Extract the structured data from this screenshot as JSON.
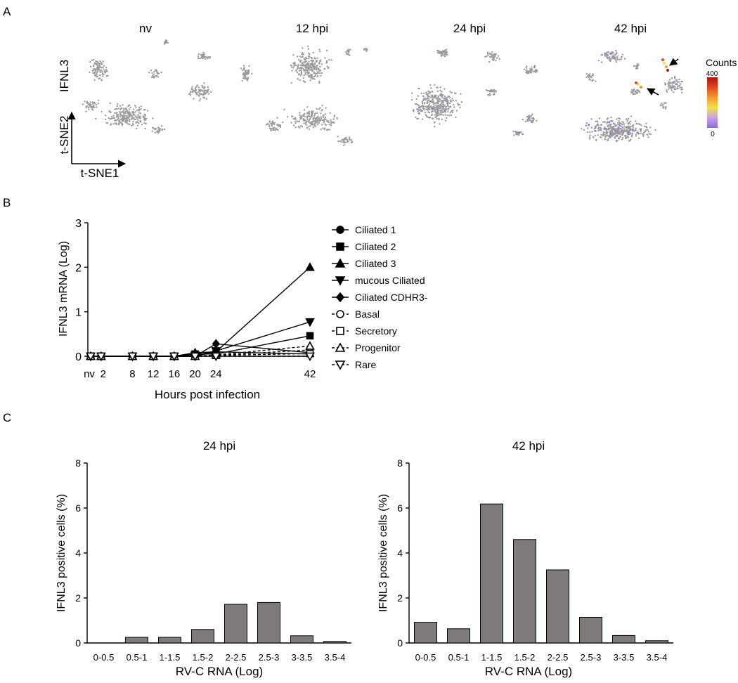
{
  "panel_labels": [
    "A",
    "B",
    "C"
  ],
  "panel_a": {
    "timepoints": [
      "nv",
      "12 hpi",
      "24 hpi",
      "42 hpi"
    ],
    "x_axis_label": "t-SNE1",
    "y_axis_label": "t-SNE2",
    "gene_label": "IFNL3",
    "colorbar": {
      "title": "Counts",
      "max_label": "400",
      "min_label": "0",
      "colors": [
        "#8a6bd8",
        "#c9a0e8",
        "#f0e24a",
        "#f29a2e",
        "#e24a1e",
        "#b1120f"
      ]
    },
    "arrows": 2
  },
  "chart_data": [
    {
      "type": "line",
      "title": "",
      "xlabel": "Hours post infection",
      "ylabel": "IFNL3 mRNA (Log)",
      "x": [
        0,
        2,
        8,
        12,
        16,
        20,
        24,
        42
      ],
      "x_tick_labels": [
        "nv",
        "2",
        "8",
        "12",
        "16",
        "20",
        "24",
        "42"
      ],
      "ylim": [
        0,
        3
      ],
      "y_ticks": [
        "0",
        "1",
        "2",
        "3"
      ],
      "series": [
        {
          "name": "Ciliated 1",
          "marker": "circle-filled",
          "dashed": false,
          "values": [
            0,
            0,
            0,
            0,
            0,
            0,
            0.1,
            0.05
          ]
        },
        {
          "name": "Ciliated 2",
          "marker": "square-filled",
          "dashed": false,
          "values": [
            0,
            0,
            0,
            0,
            0,
            0.05,
            0.05,
            0.46
          ]
        },
        {
          "name": "Ciliated 3",
          "marker": "triangle-up-filled",
          "dashed": false,
          "values": [
            0,
            0,
            0,
            0,
            0,
            0.08,
            0.1,
            2.0
          ]
        },
        {
          "name": "mucous Ciliated",
          "marker": "triangle-down-filled",
          "dashed": false,
          "values": [
            0,
            0,
            0,
            0,
            0,
            0.02,
            0.12,
            0.77
          ]
        },
        {
          "name": "Ciliated CDHR3-",
          "marker": "diamond-filled",
          "dashed": false,
          "values": [
            0,
            0,
            0,
            0,
            0,
            0.0,
            0.28,
            0.08
          ]
        },
        {
          "name": "Basal",
          "marker": "circle-open",
          "dashed": true,
          "values": [
            0,
            0,
            0,
            0,
            0,
            0,
            0.02,
            0.14
          ]
        },
        {
          "name": "Secretory",
          "marker": "square-open",
          "dashed": true,
          "values": [
            0,
            0,
            0,
            0,
            0,
            0,
            0.02,
            0.06
          ]
        },
        {
          "name": "Progenitor",
          "marker": "triangle-up-open",
          "dashed": true,
          "values": [
            0,
            0,
            0,
            0,
            0,
            0,
            0.03,
            0.23
          ]
        },
        {
          "name": "Rare",
          "marker": "triangle-down-open",
          "dashed": true,
          "values": [
            0,
            0,
            0,
            0,
            0,
            0,
            0,
            0.0
          ]
        }
      ]
    },
    {
      "type": "bar",
      "title": "24 hpi",
      "xlabel": "RV-C RNA (Log)",
      "ylabel": "IFNL3 positive cells (%)",
      "categories": [
        "0-0.5",
        "0.5-1",
        "1-1.5",
        "1.5-2",
        "2-2.5",
        "2.5-3",
        "3-3.5",
        "3.5-4"
      ],
      "values": [
        0,
        0.25,
        0.25,
        0.6,
        1.72,
        1.8,
        0.32,
        0.07
      ],
      "ylim": [
        0,
        8
      ],
      "y_ticks": [
        "0",
        "2",
        "4",
        "6",
        "8"
      ],
      "bar_color": "#7f7b7b"
    },
    {
      "type": "bar",
      "title": "42 hpi",
      "xlabel": "RV-C RNA (Log)",
      "ylabel": "IFNL3 positive cells (%)",
      "categories": [
        "0-0.5",
        "0.5-1",
        "1-1.5",
        "1.5-2",
        "2-2.5",
        "2.5-3",
        "3-3.5",
        "3.5-4"
      ],
      "values": [
        0.92,
        0.63,
        6.18,
        4.6,
        3.25,
        1.14,
        0.33,
        0.1
      ],
      "ylim": [
        0,
        8
      ],
      "y_ticks": [
        "0",
        "2",
        "4",
        "6",
        "8"
      ],
      "bar_color": "#7f7b7b"
    }
  ]
}
